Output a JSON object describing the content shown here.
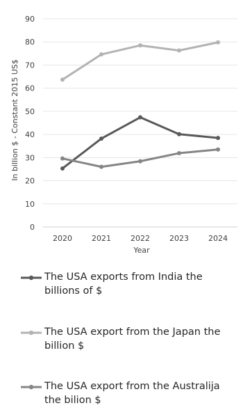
{
  "chart_data": {
    "type": "line",
    "x": [
      "2020",
      "2021",
      "2022",
      "2023",
      "2024"
    ],
    "xlabel": "Year",
    "ylabel": "In billion $ - Constant 2015 US$",
    "ylim": [
      0,
      90
    ],
    "yticks": [
      "0",
      "10",
      "20",
      "30",
      "40",
      "50",
      "60",
      "70",
      "80",
      "90"
    ],
    "grid": true,
    "legend_position": "bottom",
    "series": [
      {
        "name": "The USA exports from India the billions of $",
        "values": [
          25.3,
          38.2,
          47.4,
          40.1,
          38.5
        ],
        "color": "#595959"
      },
      {
        "name": "The USA export from the Japan the billion $",
        "values": [
          63.7,
          74.6,
          78.5,
          76.3,
          79.8
        ],
        "color": "#b3b3b3"
      },
      {
        "name": "The USA export from the Australija  the bilion $",
        "values": [
          29.6,
          26.0,
          28.4,
          31.9,
          33.5
        ],
        "color": "#858585"
      }
    ]
  }
}
